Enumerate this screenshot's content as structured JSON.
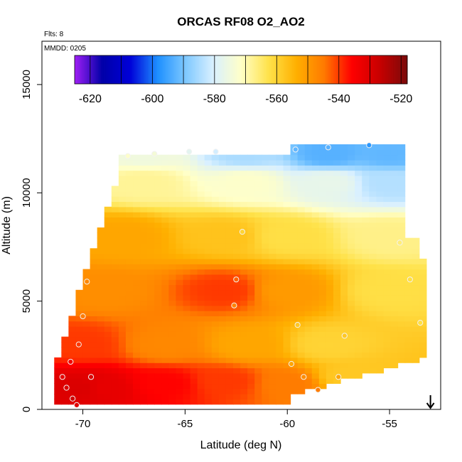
{
  "chart_data": {
    "type": "heatmap",
    "title": "ORCAS RF08 O2_AO2",
    "annotations": {
      "flights": "Flts: 8",
      "date": "MMDD: 0205"
    },
    "xlabel": "Latitude (deg N)",
    "ylabel": "Altitude (m)",
    "xlim": [
      -72,
      -52.5
    ],
    "ylim": [
      0,
      17000
    ],
    "x_ticks": [
      -70,
      -65,
      -60,
      -55
    ],
    "y_ticks": [
      0,
      5000,
      10000,
      15000
    ],
    "colorbar": {
      "range": [
        -625,
        -518
      ],
      "ticks": [
        -620,
        -600,
        -580,
        -560,
        -540,
        -520
      ],
      "colors": [
        "#9F1FF5",
        "#0000A8",
        "#0000D8",
        "#1E90FF",
        "#7EC8FF",
        "#D9F0FF",
        "#FFFFC8",
        "#FFE24A",
        "#FFB000",
        "#FF7A00",
        "#FF0000",
        "#C80000",
        "#7A0A0A"
      ]
    },
    "grid": false,
    "contour_nodes": [
      {
        "lat": -70,
        "alt": 1000,
        "value": -530
      },
      {
        "lat": -69,
        "alt": 1000,
        "value": -532
      },
      {
        "lat": -66,
        "alt": 1200,
        "value": -536
      },
      {
        "lat": -63,
        "alt": 1300,
        "value": -540
      },
      {
        "lat": -60,
        "alt": 1200,
        "value": -545
      },
      {
        "lat": -57,
        "alt": 1500,
        "value": -558
      },
      {
        "lat": -70,
        "alt": 3000,
        "value": -540
      },
      {
        "lat": -66,
        "alt": 3000,
        "value": -547
      },
      {
        "lat": -62,
        "alt": 3000,
        "value": -552
      },
      {
        "lat": -58,
        "alt": 3000,
        "value": -560
      },
      {
        "lat": -69,
        "alt": 5500,
        "value": -548
      },
      {
        "lat": -63,
        "alt": 5500,
        "value": -540
      },
      {
        "lat": -60,
        "alt": 5500,
        "value": -550
      },
      {
        "lat": -55,
        "alt": 5500,
        "value": -562
      },
      {
        "lat": -68,
        "alt": 8000,
        "value": -552
      },
      {
        "lat": -63,
        "alt": 8000,
        "value": -557
      },
      {
        "lat": -60,
        "alt": 8000,
        "value": -562
      },
      {
        "lat": -55,
        "alt": 8000,
        "value": -567
      },
      {
        "lat": -67,
        "alt": 10500,
        "value": -568
      },
      {
        "lat": -62,
        "alt": 10500,
        "value": -572
      },
      {
        "lat": -58,
        "alt": 10500,
        "value": -577
      },
      {
        "lat": -55,
        "alt": 10500,
        "value": -584
      },
      {
        "lat": -67,
        "alt": 11800,
        "value": -575
      },
      {
        "lat": -62,
        "alt": 11800,
        "value": -585
      },
      {
        "lat": -58,
        "alt": 11800,
        "value": -593
      },
      {
        "lat": -55,
        "alt": 11800,
        "value": -592
      }
    ],
    "observations": [
      {
        "lat": -71.0,
        "alt": 1500,
        "value": -532
      },
      {
        "lat": -70.8,
        "alt": 1000,
        "value": -530
      },
      {
        "lat": -70.5,
        "alt": 500,
        "value": -528
      },
      {
        "lat": -70.3,
        "alt": 200,
        "value": -531
      },
      {
        "lat": -70.6,
        "alt": 2200,
        "value": -534
      },
      {
        "lat": -70.2,
        "alt": 3000,
        "value": -540
      },
      {
        "lat": -70.0,
        "alt": 4300,
        "value": -545
      },
      {
        "lat": -69.8,
        "alt": 5900,
        "value": -547
      },
      {
        "lat": -69.6,
        "alt": 1500,
        "value": -530
      },
      {
        "lat": -67.8,
        "alt": 11700,
        "value": -572
      },
      {
        "lat": -66.5,
        "alt": 11800,
        "value": -574
      },
      {
        "lat": -64.8,
        "alt": 11900,
        "value": -578
      },
      {
        "lat": -63.5,
        "alt": 11900,
        "value": -581
      },
      {
        "lat": -62.2,
        "alt": 8200,
        "value": -560
      },
      {
        "lat": -62.5,
        "alt": 6000,
        "value": -543
      },
      {
        "lat": -62.6,
        "alt": 4800,
        "value": -546
      },
      {
        "lat": -59.6,
        "alt": 12000,
        "value": -592
      },
      {
        "lat": -58.0,
        "alt": 12100,
        "value": -593
      },
      {
        "lat": -56.0,
        "alt": 12200,
        "value": -597
      },
      {
        "lat": -54.5,
        "alt": 7700,
        "value": -566
      },
      {
        "lat": -54.0,
        "alt": 6000,
        "value": -562
      },
      {
        "lat": -59.5,
        "alt": 3900,
        "value": -558
      },
      {
        "lat": -59.8,
        "alt": 2100,
        "value": -552
      },
      {
        "lat": -59.2,
        "alt": 1500,
        "value": -548
      },
      {
        "lat": -58.5,
        "alt": 900,
        "value": -545
      },
      {
        "lat": -57.5,
        "alt": 1500,
        "value": -552
      },
      {
        "lat": -57.2,
        "alt": 3400,
        "value": -558
      },
      {
        "lat": -53.5,
        "alt": 4000,
        "value": -562
      }
    ],
    "arrow_marker": {
      "lat": -53,
      "direction": "down"
    }
  }
}
